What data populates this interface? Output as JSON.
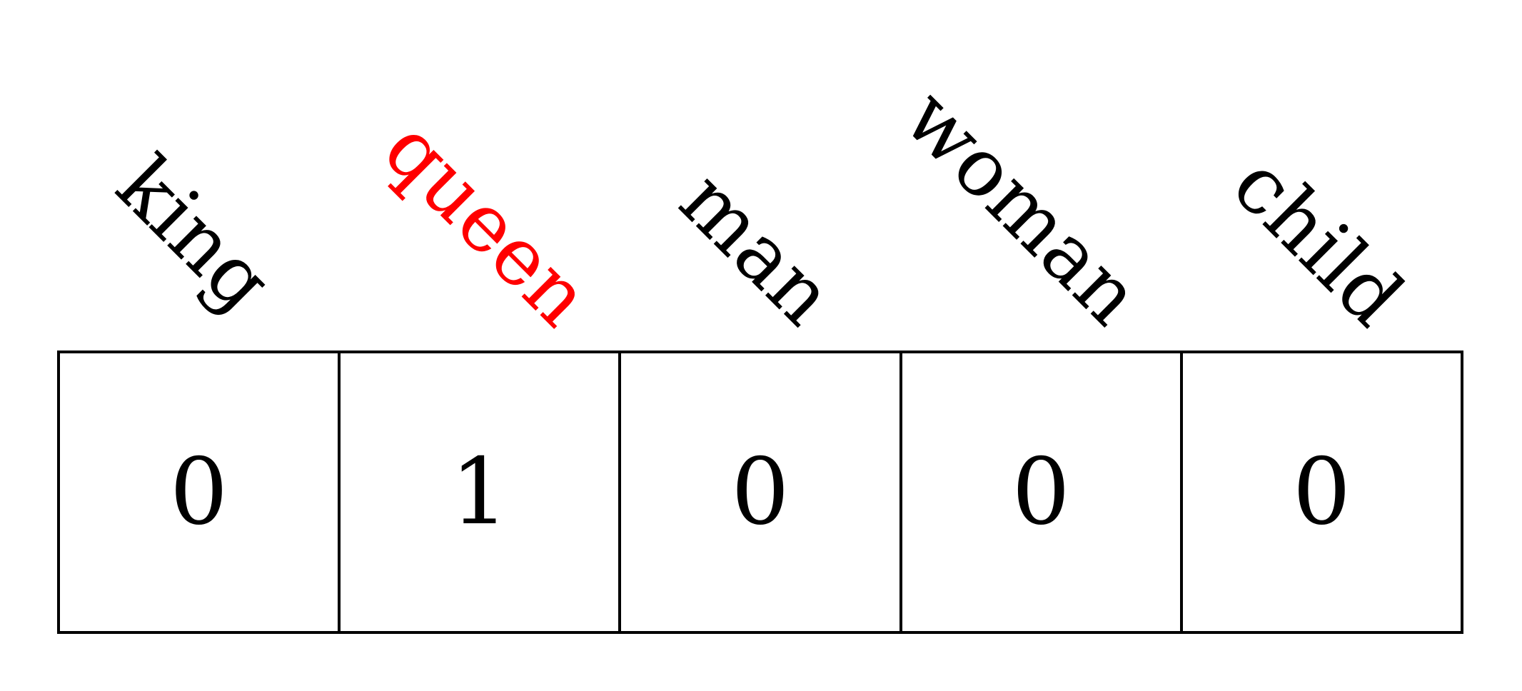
{
  "colors": {
    "default": "#000000",
    "highlight": "#ff0000"
  },
  "vector": {
    "items": [
      {
        "word": "king",
        "value": "0",
        "highlighted": false
      },
      {
        "word": "queen",
        "value": "1",
        "highlighted": true
      },
      {
        "word": "man",
        "value": "0",
        "highlighted": false
      },
      {
        "word": "woman",
        "value": "0",
        "highlighted": false
      },
      {
        "word": "child",
        "value": "0",
        "highlighted": false
      }
    ]
  }
}
